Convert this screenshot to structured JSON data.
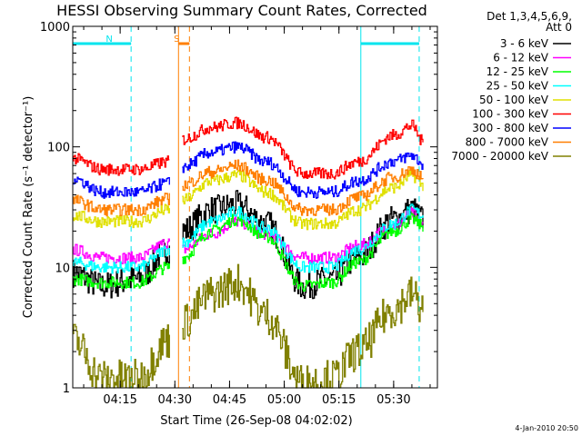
{
  "chart_data": {
    "type": "line",
    "title": "HESSI Observing Summary Count Rates, Corrected",
    "xlabel": "Start Time (26-Sep-08 04:02:02)",
    "ylabel": "Corrected Count Rate (s⁻¹ detector⁻¹)",
    "yscale": "log",
    "ylim": [
      1,
      1000
    ],
    "xlim_minutes": [
      2,
      102
    ],
    "x_ticks": [
      "04:15",
      "04:30",
      "04:45",
      "05:00",
      "05:15",
      "05:30"
    ],
    "y_ticks": [
      "1",
      "10",
      "100",
      "1000"
    ],
    "legend_header": [
      "Det 1,3,4,5,6,9,",
      "Att 0"
    ],
    "footer": "4-Jan-2010 20:50",
    "markers": [
      {
        "label": "N",
        "color": "#00e5ee",
        "from": "04:02",
        "to": "04:18",
        "style": "night"
      },
      {
        "label": "",
        "color": "#00e5ee",
        "from": "05:21",
        "to": "05:37",
        "style": "night"
      },
      {
        "label": "S",
        "color": "#ff7f00",
        "from": "04:31",
        "to": "04:34",
        "style": "saa"
      }
    ],
    "series": [
      {
        "name": "3 - 6 keV",
        "color": "#000000",
        "x": [
          "04:02",
          "04:10",
          "04:20",
          "04:28",
          "04:32",
          "04:40",
          "04:47",
          "04:55",
          "05:05",
          "05:13",
          "05:20",
          "05:30",
          "05:35",
          "05:38"
        ],
        "values": [
          9,
          7,
          8,
          14,
          20,
          30,
          33,
          23,
          7,
          8,
          12,
          25,
          30,
          25
        ]
      },
      {
        "name": "6 - 12 keV",
        "color": "#ff00ff",
        "x": [
          "04:02",
          "04:10",
          "04:20",
          "04:28",
          "04:32",
          "04:40",
          "04:47",
          "04:55",
          "05:05",
          "05:13",
          "05:20",
          "05:30",
          "05:35",
          "05:38"
        ],
        "values": [
          14,
          12,
          12,
          16,
          14,
          19,
          24,
          19,
          12,
          12,
          15,
          22,
          28,
          22
        ]
      },
      {
        "name": "12 - 25 keV",
        "color": "#00ff00",
        "x": [
          "04:02",
          "04:10",
          "04:20",
          "04:28",
          "04:32",
          "04:40",
          "04:47",
          "04:55",
          "05:05",
          "05:13",
          "05:20",
          "05:30",
          "05:35",
          "05:38"
        ],
        "values": [
          8,
          7.5,
          7.5,
          10,
          12,
          20,
          25,
          18,
          7,
          7.5,
          11,
          20,
          25,
          22
        ]
      },
      {
        "name": "25 - 50 keV",
        "color": "#00ffff",
        "x": [
          "04:02",
          "04:10",
          "04:20",
          "04:28",
          "04:32",
          "04:40",
          "04:47",
          "04:55",
          "05:05",
          "05:13",
          "05:20",
          "05:30",
          "05:35",
          "05:38"
        ],
        "values": [
          11,
          10,
          10,
          14,
          16,
          24,
          29,
          21,
          10,
          10,
          14,
          23,
          30,
          27
        ]
      },
      {
        "name": "50 - 100 keV",
        "color": "#e0e000",
        "x": [
          "04:02",
          "04:10",
          "04:20",
          "04:28",
          "04:32",
          "04:40",
          "04:47",
          "04:55",
          "05:05",
          "05:13",
          "05:20",
          "05:30",
          "05:35",
          "05:38"
        ],
        "values": [
          27,
          24,
          24,
          30,
          36,
          52,
          58,
          42,
          23,
          23,
          30,
          46,
          58,
          48
        ]
      },
      {
        "name": "100 - 300 keV",
        "color": "#ff0000",
        "x": [
          "04:02",
          "04:10",
          "04:20",
          "04:28",
          "04:32",
          "04:40",
          "04:47",
          "04:55",
          "05:05",
          "05:13",
          "05:20",
          "05:30",
          "05:35",
          "05:38"
        ],
        "values": [
          80,
          65,
          65,
          75,
          115,
          145,
          158,
          120,
          60,
          60,
          75,
          125,
          150,
          110
        ]
      },
      {
        "name": "300 - 800 keV",
        "color": "#0000ff",
        "x": [
          "04:02",
          "04:10",
          "04:20",
          "04:28",
          "04:32",
          "04:40",
          "04:47",
          "04:55",
          "05:05",
          "05:13",
          "05:20",
          "05:30",
          "05:35",
          "05:38"
        ],
        "values": [
          55,
          42,
          42,
          50,
          68,
          90,
          100,
          75,
          42,
          42,
          52,
          76,
          85,
          72
        ]
      },
      {
        "name": "800 - 7000 keV",
        "color": "#ff7f00",
        "x": [
          "04:02",
          "04:10",
          "04:20",
          "04:28",
          "04:32",
          "04:40",
          "04:47",
          "04:55",
          "05:05",
          "05:13",
          "05:20",
          "05:30",
          "05:35",
          "05:38"
        ],
        "values": [
          36,
          30,
          30,
          37,
          48,
          62,
          70,
          53,
          30,
          30,
          38,
          56,
          65,
          55
        ]
      },
      {
        "name": "7000 - 20000 keV",
        "color": "#808000",
        "x": [
          "04:02",
          "04:10",
          "04:20",
          "04:28",
          "04:32",
          "04:40",
          "04:47",
          "04:55",
          "05:05",
          "05:13",
          "05:20",
          "05:30",
          "05:35",
          "05:38"
        ],
        "values": [
          2.5,
          1.2,
          1.2,
          2.5,
          3.5,
          6,
          7.5,
          4,
          1.1,
          1.2,
          2,
          4.5,
          6,
          4.5
        ]
      }
    ]
  }
}
